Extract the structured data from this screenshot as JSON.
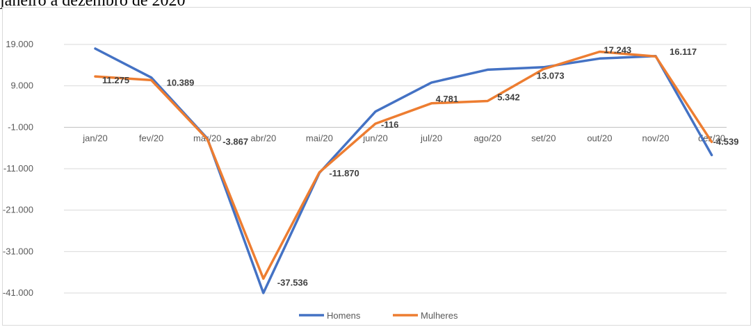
{
  "caption": "janeiro a dezembro de 2020",
  "chart_data": {
    "type": "line",
    "categories": [
      "jan/20",
      "fev/20",
      "mar/20",
      "abr/20",
      "mai/20",
      "jun/20",
      "jul/20",
      "ago/20",
      "set/20",
      "out/20",
      "nov/20",
      "dez/20"
    ],
    "series": [
      {
        "name": "Homens",
        "color": "#4472c4",
        "values": [
          18000,
          11000,
          -3700,
          -41000,
          -12000,
          2800,
          9800,
          12900,
          13500,
          15600,
          16200,
          -7700
        ]
      },
      {
        "name": "Mulheres",
        "color": "#ed7d31",
        "values": [
          11275,
          10389,
          -3867,
          -37536,
          -11870,
          -116,
          4781,
          5342,
          13073,
          17243,
          16117,
          -4539
        ]
      }
    ],
    "data_labels": [
      {
        "category": "jan/20",
        "series": "Mulheres",
        "text": "11.275"
      },
      {
        "category": "fev/20",
        "series": "Mulheres",
        "text": "10.389"
      },
      {
        "category": "mar/20",
        "series": "Mulheres",
        "text": "-3.867"
      },
      {
        "category": "abr/20",
        "series": "Mulheres",
        "text": "-37.536"
      },
      {
        "category": "mai/20",
        "series": "Mulheres",
        "text": "-11.870"
      },
      {
        "category": "jun/20",
        "series": "Mulheres",
        "text": "-116"
      },
      {
        "category": "jul/20",
        "series": "Mulheres",
        "text": "4.781"
      },
      {
        "category": "ago/20",
        "series": "Mulheres",
        "text": "5.342"
      },
      {
        "category": "set/20",
        "series": "Mulheres",
        "text": "13.073"
      },
      {
        "category": "out/20",
        "series": "Mulheres",
        "text": "17.243"
      },
      {
        "category": "nov/20",
        "series": "Mulheres",
        "text": "16.117"
      },
      {
        "category": "dez/20",
        "series": "Mulheres",
        "text": "-4.539"
      }
    ],
    "y_ticks": [
      {
        "value": 19000,
        "label": "19.000"
      },
      {
        "value": 9000,
        "label": "9.000"
      },
      {
        "value": -1000,
        "label": "-1.000"
      },
      {
        "value": -11000,
        "label": "-11.000"
      },
      {
        "value": -21000,
        "label": "-21.000"
      },
      {
        "value": -31000,
        "label": "-31.000"
      },
      {
        "value": -41000,
        "label": "-41.000"
      }
    ],
    "ylim": [
      -41000,
      19000
    ],
    "x_axis_at": -1000,
    "grid": true,
    "legend_position": "bottom",
    "title": "",
    "xlabel": "",
    "ylabel": ""
  }
}
